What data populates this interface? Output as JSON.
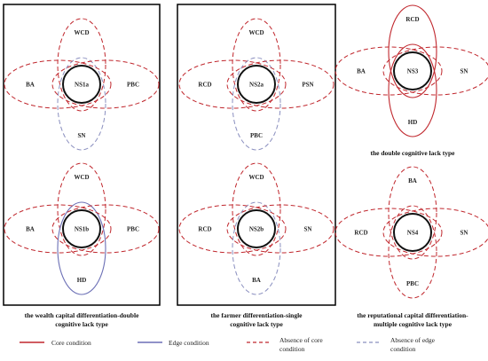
{
  "colors": {
    "core": "#c0272d",
    "edge": "#6b6fb5",
    "absence_core": "#c0272d",
    "absence_edge": "#8a8fbf",
    "center": "#111111"
  },
  "diagrams": {
    "ns1a": {
      "center": "NS1a",
      "top": "WCD",
      "left": "BA",
      "right": "PBC",
      "bottom": "SN"
    },
    "ns1b": {
      "center": "NS1b",
      "top": "WCD",
      "left": "BA",
      "right": "PBC",
      "bottom": "HD"
    },
    "ns2a": {
      "center": "NS2a",
      "top": "WCD",
      "left": "RCD",
      "right": "PSN",
      "bottom": "PBC"
    },
    "ns2b": {
      "center": "NS2b",
      "top": "WCD",
      "left": "RCD",
      "right": "SN",
      "bottom": "BA"
    },
    "ns3": {
      "center": "NS3",
      "top": "RCD",
      "left": "BA",
      "right": "SN",
      "bottom": "HD"
    },
    "ns4": {
      "center": "NS4",
      "top": "BA",
      "left": "RCD",
      "right": "SN",
      "bottom": "PBC"
    }
  },
  "captions": {
    "group1": [
      "the wealth capital differentiation-double",
      "cognitive lack type"
    ],
    "group2": [
      "the farmer differentiation-single",
      "cognitive lack type"
    ],
    "group3_top": [
      "the double cognitive lack type"
    ],
    "group3_bottom": [
      "the reputational capital differentiation-",
      "multiple cognitive lack type"
    ]
  },
  "legend": {
    "core": [
      "Core condition"
    ],
    "edge": [
      "Edge condition"
    ],
    "absence_core": [
      "Absence of core",
      "condition"
    ],
    "absence_edge": [
      "Absence of edge",
      "condition"
    ]
  }
}
